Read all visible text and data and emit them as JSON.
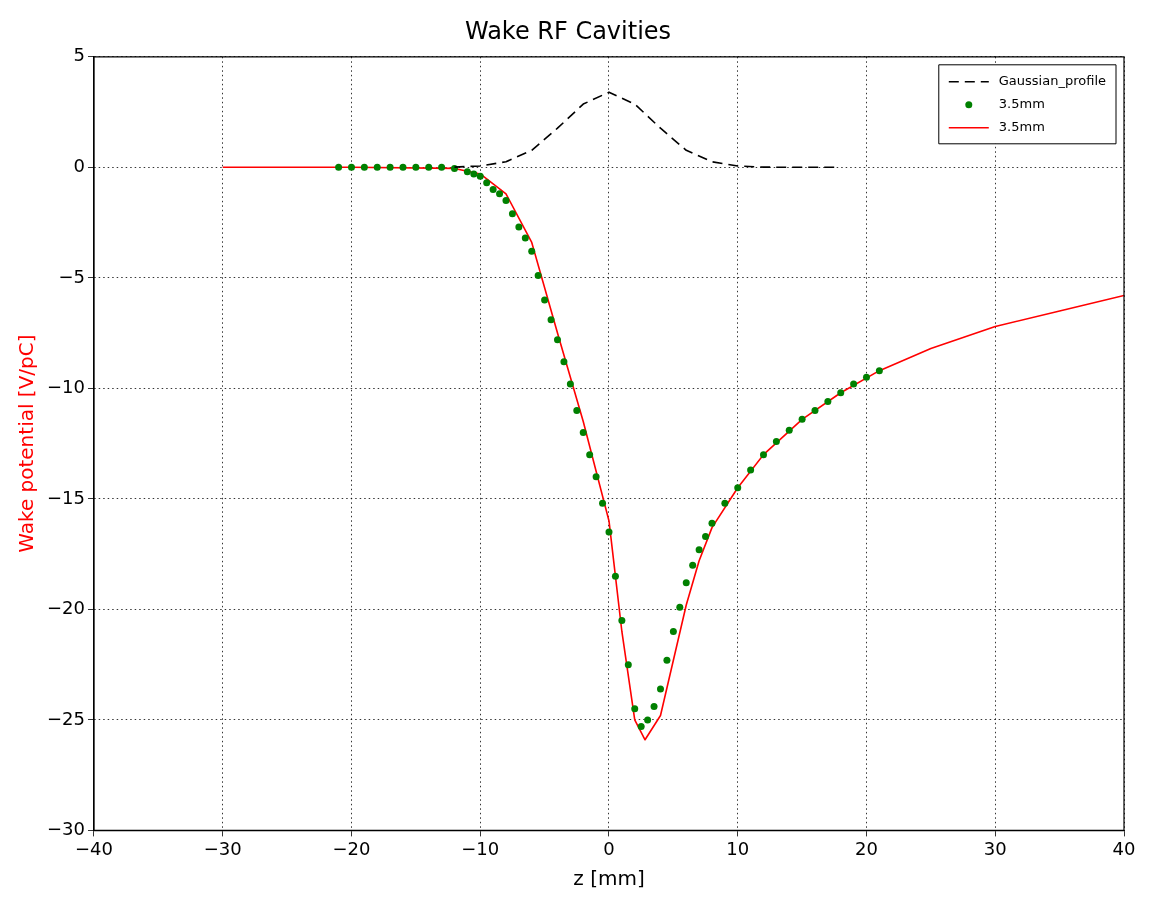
{
  "chart_data": {
    "type": "line",
    "title": "Wake RF Cavities",
    "xlabel": "z [mm]",
    "ylabel": "Wake potential [V/pC]",
    "xlim": [
      -40,
      40
    ],
    "ylim": [
      -30,
      5
    ],
    "xticks": [
      -40,
      -30,
      -20,
      -10,
      0,
      10,
      20,
      30,
      40
    ],
    "yticks": [
      -30,
      -25,
      -20,
      -15,
      -10,
      -5,
      0,
      5
    ],
    "grid": true,
    "legend": "top right",
    "series": [
      {
        "name": "Gaussian_profile",
        "type": "line",
        "line_style": "dashed",
        "marker": "none",
        "color": "#000000",
        "x": [
          -12,
          -10,
          -8,
          -6,
          -4,
          -2,
          0,
          2,
          4,
          6,
          8,
          10,
          12,
          14,
          17.5
        ],
        "values": [
          0.01,
          0.06,
          0.25,
          0.77,
          1.77,
          2.86,
          3.4,
          2.86,
          1.77,
          0.77,
          0.25,
          0.06,
          0.01,
          0,
          0
        ]
      },
      {
        "name": "3.5mm",
        "type": "scatter",
        "marker": "circle",
        "color": "#008000",
        "x": [
          -21,
          -20,
          -19,
          -18,
          -17,
          -16,
          -15,
          -14,
          -13,
          -12,
          -11,
          -10.5,
          -10,
          -9.5,
          -9,
          -8.5,
          -8,
          -7.5,
          -7,
          -6.5,
          -6,
          -5.5,
          -5,
          -4.5,
          -4,
          -3.5,
          -3,
          -2.5,
          -2,
          -1.5,
          -1,
          -0.5,
          0,
          0.5,
          1,
          1.5,
          2,
          2.5,
          3,
          3.5,
          4,
          4.5,
          5,
          5.5,
          6,
          6.5,
          7,
          7.5,
          8,
          9,
          10,
          11,
          12,
          13,
          14,
          15,
          16,
          17,
          18,
          19,
          20,
          21
        ],
        "values": [
          0,
          0,
          0,
          0,
          0,
          0,
          0,
          0,
          0,
          -0.05,
          -0.2,
          -0.3,
          -0.4,
          -0.7,
          -1,
          -1.2,
          -1.5,
          -2.1,
          -2.7,
          -3.2,
          -3.8,
          -4.9,
          -6,
          -6.9,
          -7.8,
          -8.8,
          -9.8,
          -11,
          -12,
          -13,
          -14,
          -15.2,
          -16.5,
          -18.5,
          -20.5,
          -22.5,
          -24.5,
          -25.3,
          -25,
          -24.4,
          -23.6,
          -22.3,
          -21,
          -19.9,
          -18.8,
          -18,
          -17.3,
          -16.7,
          -16.1,
          -15.2,
          -14.5,
          -13.7,
          -13,
          -12.4,
          -11.9,
          -11.4,
          -11,
          -10.6,
          -10.2,
          -9.8,
          -9.5,
          -9.2
        ]
      },
      {
        "name": "3.5mm",
        "type": "line",
        "line_style": "solid",
        "marker": "none",
        "color": "#ff0000",
        "x": [
          -30,
          -20,
          -12,
          -10,
          -8,
          -6,
          -4,
          -2,
          0,
          1,
          2,
          2.8,
          4,
          5,
          6,
          7,
          8,
          10,
          12,
          15,
          18,
          21,
          25,
          30,
          35,
          40
        ],
        "values": [
          0,
          0,
          -0.05,
          -0.3,
          -1.2,
          -3.4,
          -7.5,
          -11.5,
          -16,
          -21,
          -25,
          -25.9,
          -24.8,
          -22.3,
          -19.8,
          -17.8,
          -16.3,
          -14.5,
          -13,
          -11.4,
          -10.2,
          -9.2,
          -8.2,
          -7.2,
          -6.5,
          -5.8
        ]
      }
    ]
  }
}
